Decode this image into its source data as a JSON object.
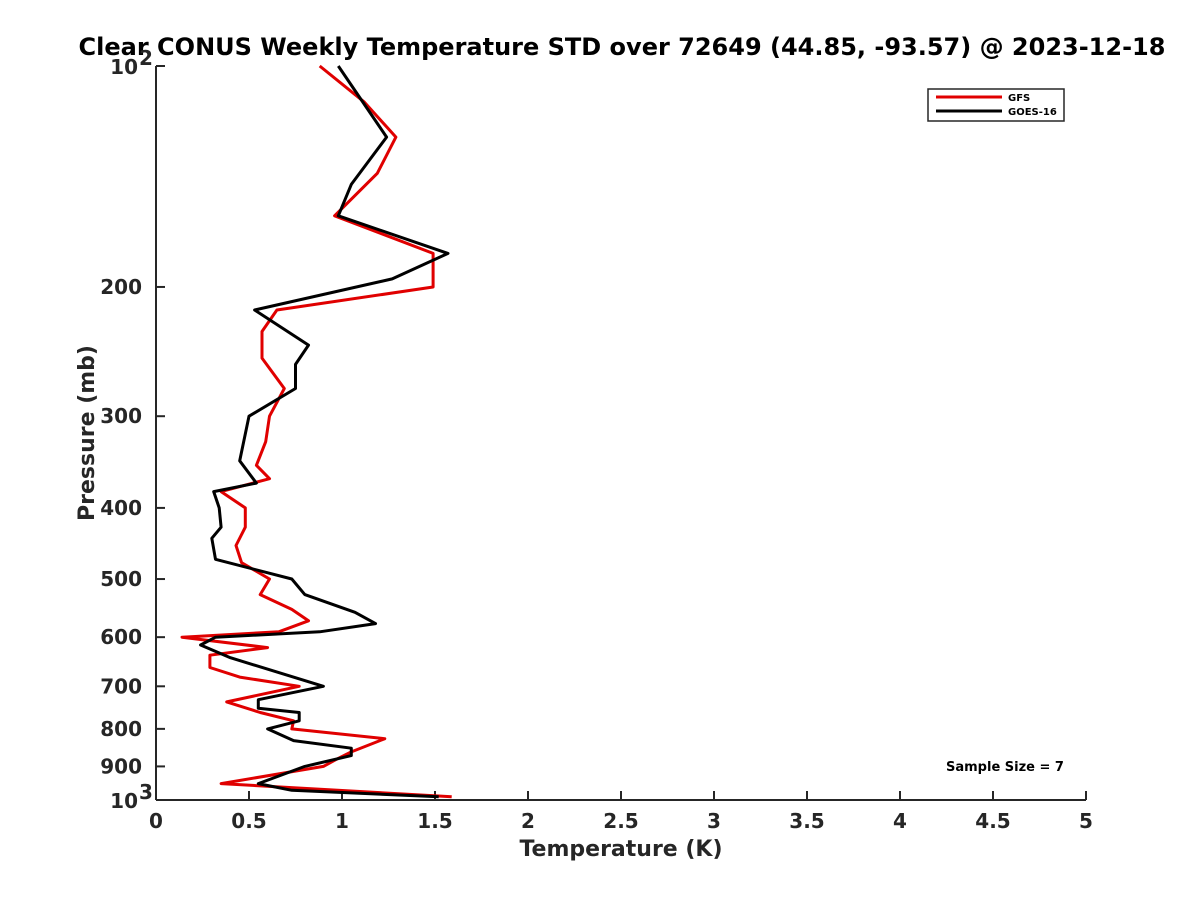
{
  "chart_data": {
    "type": "line",
    "title": "Clear CONUS Weekly Temperature STD over 72649 (44.85, -93.57) @ 2023-12-18",
    "xlabel": "Temperature (K)",
    "ylabel": "Pressure (mb)",
    "xlim": [
      0,
      5
    ],
    "ylim": [
      100,
      1000
    ],
    "y_scale": "log",
    "y_reversed": true,
    "x_ticks": [
      "0",
      "0.5",
      "1",
      "1.5",
      "2",
      "2.5",
      "3",
      "3.5",
      "4",
      "4.5",
      "5"
    ],
    "x_tick_values": [
      0,
      0.5,
      1,
      1.5,
      2,
      2.5,
      3,
      3.5,
      4,
      4.5,
      5
    ],
    "y_ticks": [
      {
        "value": 100,
        "label": "10",
        "exp": "2"
      },
      {
        "value": 200,
        "label": "200",
        "exp": ""
      },
      {
        "value": 300,
        "label": "300",
        "exp": ""
      },
      {
        "value": 400,
        "label": "400",
        "exp": ""
      },
      {
        "value": 500,
        "label": "500",
        "exp": ""
      },
      {
        "value": 600,
        "label": "600",
        "exp": ""
      },
      {
        "value": 700,
        "label": "700",
        "exp": ""
      },
      {
        "value": 800,
        "label": "800",
        "exp": ""
      },
      {
        "value": 900,
        "label": "900",
        "exp": ""
      },
      {
        "value": 1000,
        "label": "10",
        "exp": "3"
      }
    ],
    "grid": false,
    "legend_position": "top-right",
    "annotation": "Sample Size = 7",
    "series": [
      {
        "name": "GFS",
        "color": "#e00000",
        "points": [
          [
            0.88,
            100
          ],
          [
            1.12,
            112
          ],
          [
            1.29,
            125
          ],
          [
            1.19,
            140
          ],
          [
            0.96,
            160
          ],
          [
            1.49,
            180
          ],
          [
            1.49,
            200
          ],
          [
            0.65,
            215
          ],
          [
            0.57,
            230
          ],
          [
            0.57,
            250
          ],
          [
            0.69,
            275
          ],
          [
            0.61,
            300
          ],
          [
            0.59,
            325
          ],
          [
            0.54,
            350
          ],
          [
            0.61,
            365
          ],
          [
            0.35,
            380
          ],
          [
            0.48,
            400
          ],
          [
            0.48,
            425
          ],
          [
            0.43,
            450
          ],
          [
            0.46,
            475
          ],
          [
            0.61,
            500
          ],
          [
            0.56,
            525
          ],
          [
            0.73,
            550
          ],
          [
            0.82,
            570
          ],
          [
            0.66,
            590
          ],
          [
            0.14,
            600
          ],
          [
            0.6,
            620
          ],
          [
            0.29,
            635
          ],
          [
            0.29,
            660
          ],
          [
            0.45,
            680
          ],
          [
            0.77,
            700
          ],
          [
            0.38,
            735
          ],
          [
            0.56,
            760
          ],
          [
            0.74,
            780
          ],
          [
            0.73,
            800
          ],
          [
            1.23,
            825
          ],
          [
            1.05,
            860
          ],
          [
            0.97,
            880
          ],
          [
            0.9,
            900
          ],
          [
            0.35,
            950
          ],
          [
            1.59,
            990
          ]
        ]
      },
      {
        "name": "GOES-16",
        "color": "#000000",
        "points": [
          [
            0.98,
            100
          ],
          [
            1.24,
            125
          ],
          [
            1.05,
            145
          ],
          [
            0.98,
            160
          ],
          [
            1.57,
            180
          ],
          [
            1.27,
            195
          ],
          [
            0.53,
            215
          ],
          [
            0.82,
            240
          ],
          [
            0.75,
            255
          ],
          [
            0.75,
            275
          ],
          [
            0.5,
            300
          ],
          [
            0.45,
            345
          ],
          [
            0.54,
            370
          ],
          [
            0.31,
            380
          ],
          [
            0.34,
            400
          ],
          [
            0.35,
            425
          ],
          [
            0.3,
            440
          ],
          [
            0.32,
            470
          ],
          [
            0.73,
            500
          ],
          [
            0.8,
            525
          ],
          [
            1.07,
            555
          ],
          [
            1.18,
            575
          ],
          [
            0.88,
            590
          ],
          [
            0.32,
            600
          ],
          [
            0.24,
            615
          ],
          [
            0.4,
            640
          ],
          [
            0.9,
            700
          ],
          [
            0.55,
            730
          ],
          [
            0.55,
            750
          ],
          [
            0.77,
            760
          ],
          [
            0.77,
            780
          ],
          [
            0.6,
            800
          ],
          [
            0.74,
            830
          ],
          [
            1.05,
            850
          ],
          [
            1.05,
            870
          ],
          [
            0.8,
            900
          ],
          [
            0.55,
            950
          ],
          [
            0.73,
            970
          ],
          [
            1.52,
            990
          ]
        ]
      }
    ]
  }
}
